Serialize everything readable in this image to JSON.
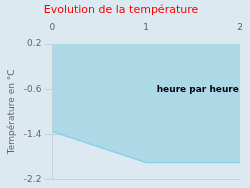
{
  "chart_data": {
    "type": "area",
    "title": "Evolution de la température",
    "title_color": "#ff0000",
    "ylabel": "Température en °C",
    "background_color": "#dce9f0",
    "annotations": [
      {
        "text": "heure par heure",
        "x": 1.55,
        "y": -0.6
      }
    ],
    "x": [
      0,
      1.0,
      2.0
    ],
    "series": [
      {
        "values": [
          -1.35,
          -1.9,
          -1.9
        ],
        "color": "#87ceeb",
        "fill_color": "#add8e6",
        "fill_to": [
          0.2,
          0.2,
          0.2
        ]
      }
    ],
    "xlim": [
      0,
      2
    ],
    "xticks": [
      0,
      1,
      2
    ],
    "ylim": [
      -2.2,
      0.2
    ],
    "yticks": [
      0.2,
      -0.6,
      -1.4,
      -2.2
    ],
    "grid": "y"
  }
}
